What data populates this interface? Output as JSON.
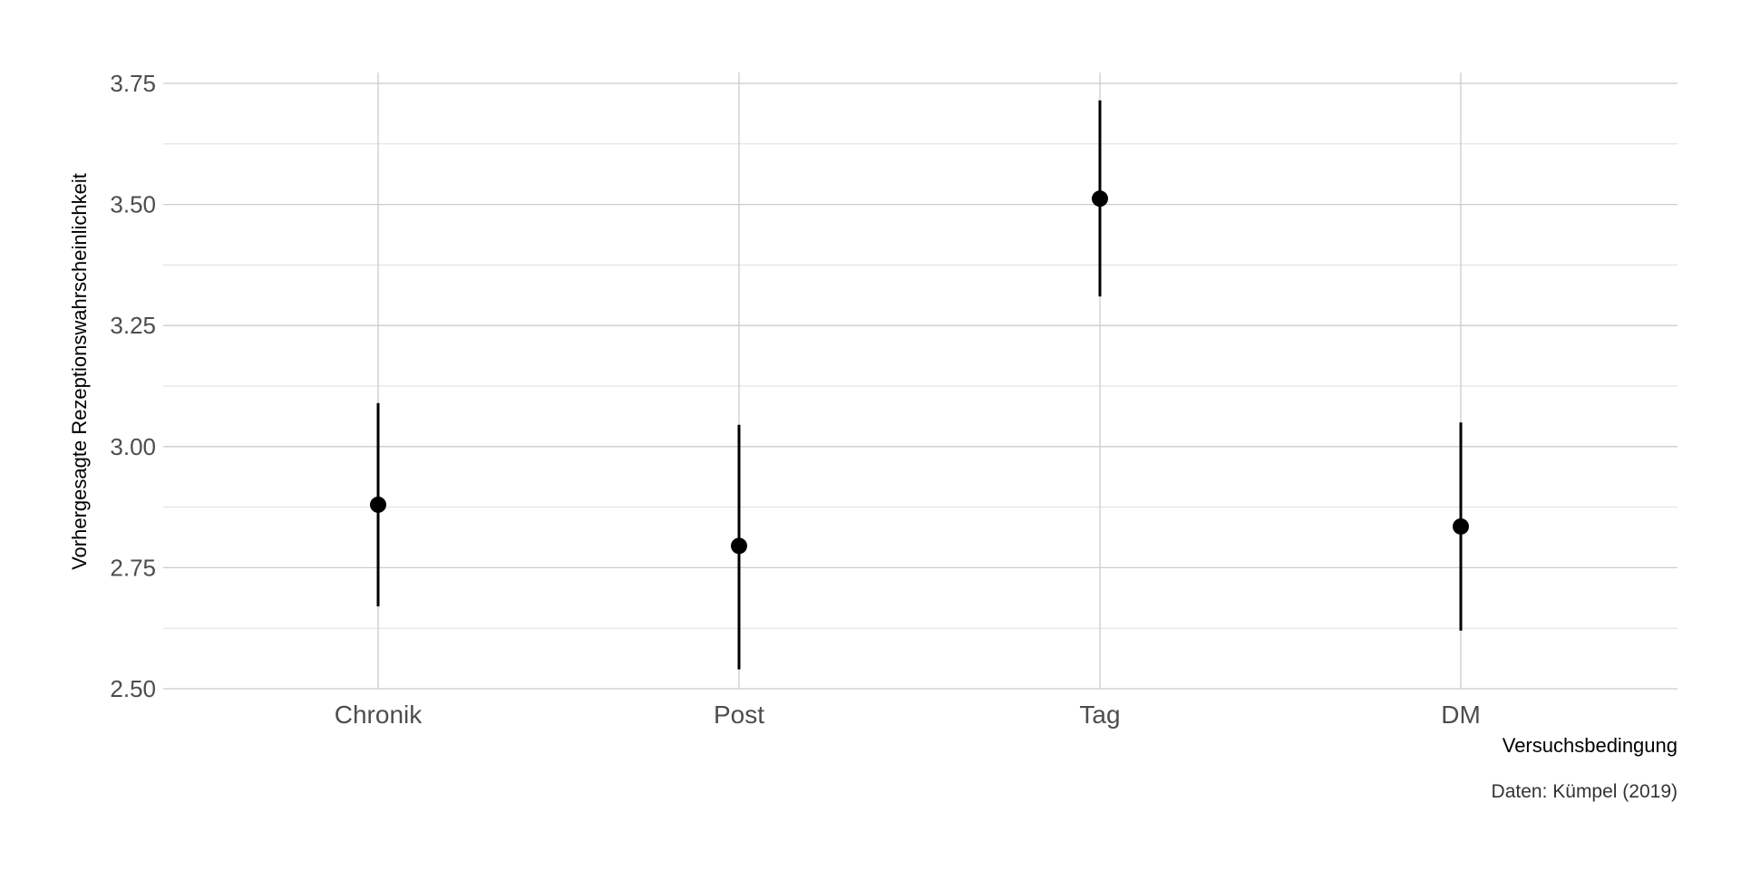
{
  "chart_data": {
    "type": "scatter",
    "subtype": "point-with-error-bars",
    "categories": [
      "Chronik",
      "Post",
      "Tag",
      "DM"
    ],
    "values": [
      2.88,
      2.795,
      3.512,
      2.835
    ],
    "ci_lower": [
      2.67,
      2.54,
      3.31,
      2.62
    ],
    "ci_upper": [
      3.09,
      3.045,
      3.715,
      3.05
    ],
    "xlabel": "Versuchsbedingung",
    "ylabel": "Vorhergesagte Rezeptionswahrscheinlichkeit",
    "caption": "Daten: Kümpel (2019)",
    "ylim": [
      2.5,
      3.75
    ],
    "yticks": [
      "2.50",
      "2.75",
      "3.00",
      "3.25",
      "3.50",
      "3.75"
    ],
    "grid": true,
    "colors": {
      "point": "#000000",
      "grid": "#cccccc",
      "tick_text": "#4d4d4d"
    }
  }
}
